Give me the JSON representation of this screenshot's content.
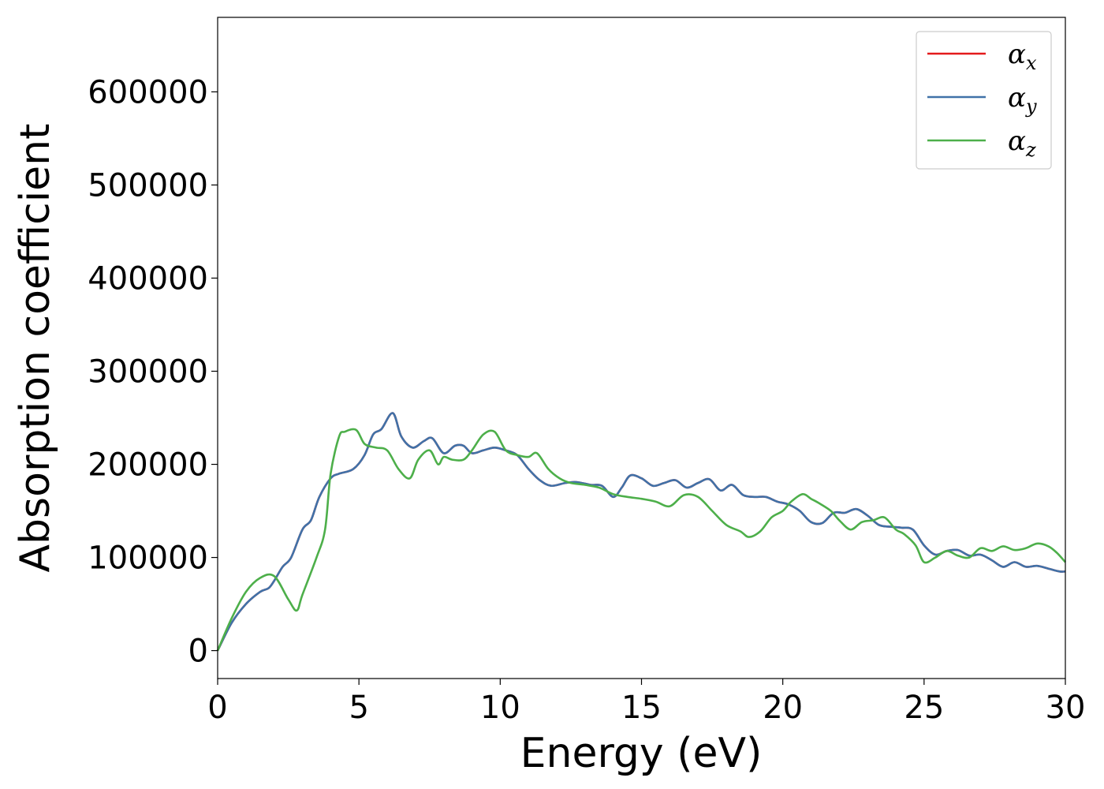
{
  "chart_data": {
    "type": "line",
    "title": "",
    "xlabel": "Energy (eV)",
    "ylabel": "Absorption coefficient",
    "xlim": [
      0,
      30
    ],
    "ylim": [
      -30000,
      680000
    ],
    "xticks": [
      0,
      5,
      10,
      15,
      20,
      25,
      30
    ],
    "yticks": [
      0,
      100000,
      200000,
      300000,
      400000,
      500000,
      600000
    ],
    "grid": false,
    "legend_position": "top-right",
    "series": [
      {
        "name": "α",
        "subscript": "x",
        "color": "#e41a1c",
        "x": [
          0,
          0.5,
          1,
          1.5,
          1.8,
          2,
          2.3,
          2.6,
          3,
          3.3,
          3.6,
          4,
          4.3,
          4.8,
          5.2,
          5.5,
          5.8,
          6.2,
          6.5,
          6.9,
          7.3,
          7.6,
          8,
          8.4,
          8.7,
          9,
          9.4,
          9.8,
          10.2,
          10.6,
          11,
          11.4,
          11.8,
          12.3,
          12.7,
          13.2,
          13.6,
          14,
          14.3,
          14.6,
          15,
          15.4,
          15.8,
          16.2,
          16.6,
          17,
          17.4,
          17.8,
          18.2,
          18.6,
          19,
          19.4,
          19.8,
          20.2,
          20.6,
          21,
          21.4,
          21.8,
          22.2,
          22.6,
          23,
          23.4,
          23.8,
          24.2,
          24.6,
          25,
          25.4,
          25.8,
          26.2,
          26.6,
          27,
          27.4,
          27.8,
          28.2,
          28.6,
          29,
          29.4,
          29.8,
          30
        ],
        "values": [
          0,
          30000,
          50000,
          63000,
          67000,
          75000,
          90000,
          100000,
          130000,
          140000,
          165000,
          185000,
          190000,
          195000,
          210000,
          232000,
          238000,
          255000,
          230000,
          218000,
          225000,
          228000,
          212000,
          220000,
          220000,
          212000,
          215000,
          218000,
          215000,
          210000,
          195000,
          183000,
          177000,
          180000,
          181000,
          178000,
          177000,
          165000,
          175000,
          188000,
          185000,
          177000,
          180000,
          183000,
          175000,
          180000,
          184000,
          172000,
          178000,
          167000,
          165000,
          165000,
          160000,
          157000,
          150000,
          138000,
          137000,
          148000,
          148000,
          152000,
          145000,
          135000,
          133000,
          132000,
          130000,
          113000,
          103000,
          107000,
          108000,
          102000,
          103000,
          97000,
          90000,
          95000,
          90000,
          91000,
          88000,
          85000,
          85000
        ]
      },
      {
        "name": "α",
        "subscript": "y",
        "color": "#4072a8",
        "x": [
          0,
          0.5,
          1,
          1.5,
          1.8,
          2,
          2.3,
          2.6,
          3,
          3.3,
          3.6,
          4,
          4.3,
          4.8,
          5.2,
          5.5,
          5.8,
          6.2,
          6.5,
          6.9,
          7.3,
          7.6,
          8,
          8.4,
          8.7,
          9,
          9.4,
          9.8,
          10.2,
          10.6,
          11,
          11.4,
          11.8,
          12.3,
          12.7,
          13.2,
          13.6,
          14,
          14.3,
          14.6,
          15,
          15.4,
          15.8,
          16.2,
          16.6,
          17,
          17.4,
          17.8,
          18.2,
          18.6,
          19,
          19.4,
          19.8,
          20.2,
          20.6,
          21,
          21.4,
          21.8,
          22.2,
          22.6,
          23,
          23.4,
          23.8,
          24.2,
          24.6,
          25,
          25.4,
          25.8,
          26.2,
          26.6,
          27,
          27.4,
          27.8,
          28.2,
          28.6,
          29,
          29.4,
          29.8,
          30
        ],
        "values": [
          0,
          30000,
          50000,
          63000,
          67000,
          75000,
          90000,
          100000,
          130000,
          140000,
          165000,
          185000,
          190000,
          195000,
          210000,
          232000,
          238000,
          255000,
          230000,
          218000,
          225000,
          228000,
          212000,
          220000,
          220000,
          212000,
          215000,
          218000,
          215000,
          210000,
          195000,
          183000,
          177000,
          180000,
          181000,
          178000,
          177000,
          165000,
          175000,
          188000,
          185000,
          177000,
          180000,
          183000,
          175000,
          180000,
          184000,
          172000,
          178000,
          167000,
          165000,
          165000,
          160000,
          157000,
          150000,
          138000,
          137000,
          148000,
          148000,
          152000,
          145000,
          135000,
          133000,
          132000,
          130000,
          113000,
          103000,
          107000,
          108000,
          102000,
          103000,
          97000,
          90000,
          95000,
          90000,
          91000,
          88000,
          85000,
          85000
        ]
      },
      {
        "name": "α",
        "subscript": "z",
        "color": "#4daf4a",
        "x": [
          0,
          0.5,
          1,
          1.5,
          2,
          2.5,
          2.8,
          3,
          3.5,
          3.8,
          4,
          4.3,
          4.5,
          4.9,
          5.2,
          5.6,
          6,
          6.4,
          6.8,
          7.1,
          7.5,
          7.8,
          8,
          8.3,
          8.7,
          9,
          9.4,
          9.8,
          10.2,
          10.6,
          11,
          11.3,
          11.7,
          12.1,
          12.5,
          13,
          13.5,
          14,
          14.5,
          15,
          15.5,
          16,
          16.5,
          17,
          17.5,
          18,
          18.5,
          18.8,
          19.2,
          19.6,
          20,
          20.3,
          20.7,
          21,
          21.3,
          21.7,
          22,
          22.4,
          22.8,
          23.2,
          23.6,
          24,
          24.3,
          24.7,
          25,
          25.4,
          25.8,
          26.2,
          26.6,
          27,
          27.4,
          27.8,
          28.2,
          28.6,
          29,
          29.4,
          29.7,
          30
        ],
        "values": [
          0,
          35000,
          63000,
          78000,
          80000,
          55000,
          43000,
          60000,
          100000,
          130000,
          190000,
          230000,
          235000,
          237000,
          222000,
          218000,
          215000,
          195000,
          185000,
          205000,
          215000,
          200000,
          208000,
          205000,
          205000,
          215000,
          232000,
          235000,
          215000,
          210000,
          208000,
          212000,
          195000,
          185000,
          180000,
          178000,
          175000,
          168000,
          165000,
          163000,
          160000,
          155000,
          167000,
          165000,
          150000,
          135000,
          128000,
          122000,
          128000,
          143000,
          150000,
          160000,
          168000,
          163000,
          158000,
          150000,
          140000,
          130000,
          138000,
          140000,
          143000,
          130000,
          125000,
          113000,
          95000,
          100000,
          107000,
          102000,
          100000,
          110000,
          107000,
          112000,
          108000,
          110000,
          115000,
          112000,
          105000,
          95000
        ]
      }
    ]
  }
}
